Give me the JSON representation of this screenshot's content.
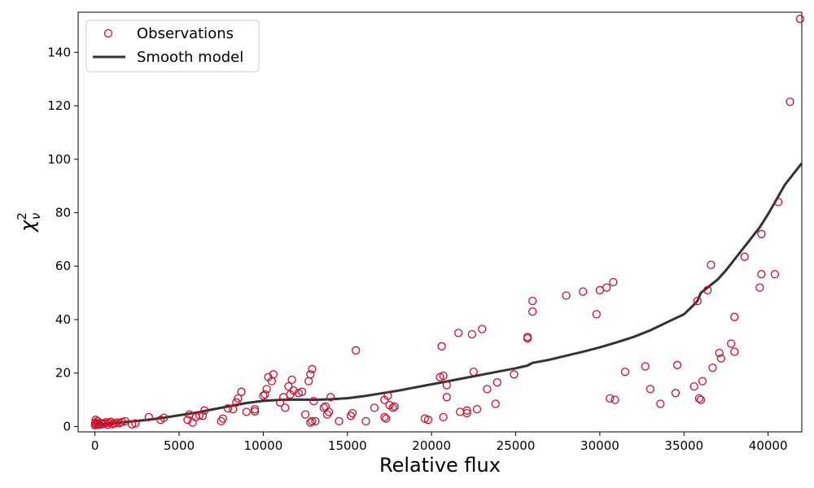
{
  "chart_data": {
    "type": "scatter",
    "title": "",
    "xlabel": "Relative flux",
    "ylabel": "χ",
    "ylabel_superscript": "2",
    "ylabel_subscript": "ν",
    "xlim": [
      -1000,
      42000
    ],
    "ylim": [
      -2,
      155
    ],
    "xticks": [
      0,
      5000,
      10000,
      15000,
      20000,
      25000,
      30000,
      35000,
      40000
    ],
    "yticks": [
      0,
      20,
      40,
      60,
      80,
      100,
      120,
      140
    ],
    "grid": false,
    "legend": {
      "placement": "top-left",
      "entries": [
        "Observations",
        "Smooth model"
      ]
    },
    "colors": {
      "observations": "#c8102e",
      "model": "#333333"
    },
    "series": [
      {
        "name": "Observations",
        "kind": "scatter",
        "points": [
          [
            0,
            0.5
          ],
          [
            20,
            1.5
          ],
          [
            40,
            2.5
          ],
          [
            60,
            0.8
          ],
          [
            100,
            1.2
          ],
          [
            150,
            2.0
          ],
          [
            200,
            1.0
          ],
          [
            250,
            0.6
          ],
          [
            350,
            1.3
          ],
          [
            450,
            0.9
          ],
          [
            550,
            1.1
          ],
          [
            650,
            1.6
          ],
          [
            750,
            0.7
          ],
          [
            850,
            1.4
          ],
          [
            950,
            1.8
          ],
          [
            1050,
            0.9
          ],
          [
            1150,
            1.2
          ],
          [
            1300,
            1.5
          ],
          [
            1450,
            1.3
          ],
          [
            1600,
            1.7
          ],
          [
            1800,
            2.0
          ],
          [
            2200,
            0.8
          ],
          [
            2400,
            1.2
          ],
          [
            3200,
            3.5
          ],
          [
            3900,
            2.5
          ],
          [
            4100,
            3.3
          ],
          [
            5500,
            2.5
          ],
          [
            5600,
            4.5
          ],
          [
            5800,
            1.5
          ],
          [
            6000,
            3.5
          ],
          [
            6200,
            4.2
          ],
          [
            6400,
            4.0
          ],
          [
            6500,
            6.0
          ],
          [
            7500,
            2.0
          ],
          [
            7600,
            3.0
          ],
          [
            7900,
            6.8
          ],
          [
            8200,
            6.5
          ],
          [
            8400,
            9.0
          ],
          [
            8500,
            10.5
          ],
          [
            8700,
            13.0
          ],
          [
            9000,
            5.5
          ],
          [
            9500,
            5.7
          ],
          [
            9500,
            6.5
          ],
          [
            10000,
            11.5
          ],
          [
            10100,
            12.0
          ],
          [
            10200,
            14.0
          ],
          [
            10300,
            18.5
          ],
          [
            10500,
            17.0
          ],
          [
            10600,
            19.5
          ],
          [
            11000,
            9.0
          ],
          [
            11200,
            11.0
          ],
          [
            11300,
            7.0
          ],
          [
            11500,
            15.0
          ],
          [
            11600,
            12.0
          ],
          [
            11700,
            17.5
          ],
          [
            11800,
            13.5
          ],
          [
            12100,
            12.5
          ],
          [
            12300,
            13.0
          ],
          [
            12500,
            4.5
          ],
          [
            12700,
            17.0
          ],
          [
            12800,
            19.5
          ],
          [
            12900,
            21.5
          ],
          [
            13000,
            9.5
          ],
          [
            12800,
            1.5
          ],
          [
            12900,
            2.0
          ],
          [
            13100,
            2.0
          ],
          [
            13600,
            7.0
          ],
          [
            13700,
            7.5
          ],
          [
            13800,
            4.5
          ],
          [
            13900,
            5.5
          ],
          [
            14000,
            11.0
          ],
          [
            14500,
            2.0
          ],
          [
            15200,
            4.0
          ],
          [
            15300,
            5.0
          ],
          [
            15500,
            28.5
          ],
          [
            16100,
            2.0
          ],
          [
            16600,
            7.0
          ],
          [
            17200,
            10.0
          ],
          [
            17200,
            3.5
          ],
          [
            17300,
            3.0
          ],
          [
            17400,
            11.5
          ],
          [
            17500,
            8.0
          ],
          [
            17700,
            7.0
          ],
          [
            17800,
            7.5
          ],
          [
            19600,
            3.0
          ],
          [
            19800,
            2.5
          ],
          [
            20500,
            18.5
          ],
          [
            20600,
            30.0
          ],
          [
            20700,
            19.0
          ],
          [
            20700,
            3.5
          ],
          [
            20900,
            11.0
          ],
          [
            20900,
            15.5
          ],
          [
            21600,
            35.0
          ],
          [
            21700,
            5.5
          ],
          [
            22100,
            5.0
          ],
          [
            22100,
            6.0
          ],
          [
            22400,
            34.5
          ],
          [
            22500,
            20.5
          ],
          [
            22700,
            6.5
          ],
          [
            23000,
            36.5
          ],
          [
            23300,
            14.0
          ],
          [
            23800,
            8.5
          ],
          [
            23900,
            16.5
          ],
          [
            24900,
            19.5
          ],
          [
            25700,
            33.5
          ],
          [
            25700,
            33.0
          ],
          [
            26000,
            47.0
          ],
          [
            26000,
            43.0
          ],
          [
            28000,
            49.0
          ],
          [
            29000,
            50.5
          ],
          [
            29800,
            42.0
          ],
          [
            30000,
            51.0
          ],
          [
            30400,
            52.0
          ],
          [
            30600,
            10.5
          ],
          [
            30800,
            54.0
          ],
          [
            30900,
            10.0
          ],
          [
            31500,
            20.5
          ],
          [
            32700,
            22.5
          ],
          [
            33000,
            14.0
          ],
          [
            33600,
            8.5
          ],
          [
            34500,
            12.5
          ],
          [
            34600,
            23.0
          ],
          [
            35600,
            15.0
          ],
          [
            35800,
            47.0
          ],
          [
            35900,
            10.5
          ],
          [
            36000,
            10.0
          ],
          [
            36100,
            17.0
          ],
          [
            36400,
            51.0
          ],
          [
            36600,
            60.5
          ],
          [
            36700,
            22.0
          ],
          [
            37100,
            27.5
          ],
          [
            37200,
            25.5
          ],
          [
            37800,
            31.0
          ],
          [
            38000,
            28.0
          ],
          [
            38000,
            41.0
          ],
          [
            38600,
            63.5
          ],
          [
            39500,
            52.0
          ],
          [
            39600,
            57.0
          ],
          [
            39600,
            72.0
          ],
          [
            40400,
            57.0
          ],
          [
            40600,
            84.0
          ],
          [
            41300,
            121.5
          ],
          [
            41900,
            152.5
          ]
        ]
      },
      {
        "name": "Smooth model",
        "kind": "line",
        "points": [
          [
            0,
            0.8
          ],
          [
            1000,
            1.2
          ],
          [
            2000,
            1.8
          ],
          [
            3000,
            2.4
          ],
          [
            4000,
            3.2
          ],
          [
            5000,
            4.2
          ],
          [
            6000,
            5.2
          ],
          [
            7000,
            6.4
          ],
          [
            8000,
            7.6
          ],
          [
            9000,
            8.8
          ],
          [
            10000,
            9.6
          ],
          [
            11000,
            10.0
          ],
          [
            12000,
            10.1
          ],
          [
            13000,
            10.0
          ],
          [
            14000,
            10.2
          ],
          [
            15000,
            10.6
          ],
          [
            16000,
            11.4
          ],
          [
            17000,
            12.4
          ],
          [
            18000,
            13.4
          ],
          [
            19000,
            14.6
          ],
          [
            20000,
            15.8
          ],
          [
            21000,
            17.0
          ],
          [
            22000,
            18.2
          ],
          [
            23000,
            19.4
          ],
          [
            24000,
            20.6
          ],
          [
            25000,
            21.8
          ],
          [
            25700,
            22.8
          ],
          [
            26000,
            23.8
          ],
          [
            27000,
            25.0
          ],
          [
            28000,
            26.5
          ],
          [
            29000,
            28.0
          ],
          [
            30000,
            29.6
          ],
          [
            31000,
            31.5
          ],
          [
            32000,
            33.5
          ],
          [
            33000,
            36.0
          ],
          [
            34000,
            39.0
          ],
          [
            35000,
            42.0
          ],
          [
            35500,
            45.0
          ],
          [
            35800,
            47.0
          ],
          [
            36000,
            50.0
          ],
          [
            36500,
            52.5
          ],
          [
            37000,
            55.0
          ],
          [
            37500,
            58.5
          ],
          [
            38000,
            62.5
          ],
          [
            38500,
            66.5
          ],
          [
            39000,
            70.5
          ],
          [
            39500,
            74.5
          ],
          [
            40000,
            79.5
          ],
          [
            40500,
            85.0
          ],
          [
            41000,
            90.5
          ],
          [
            41500,
            94.5
          ],
          [
            42000,
            98.5
          ]
        ]
      }
    ]
  }
}
